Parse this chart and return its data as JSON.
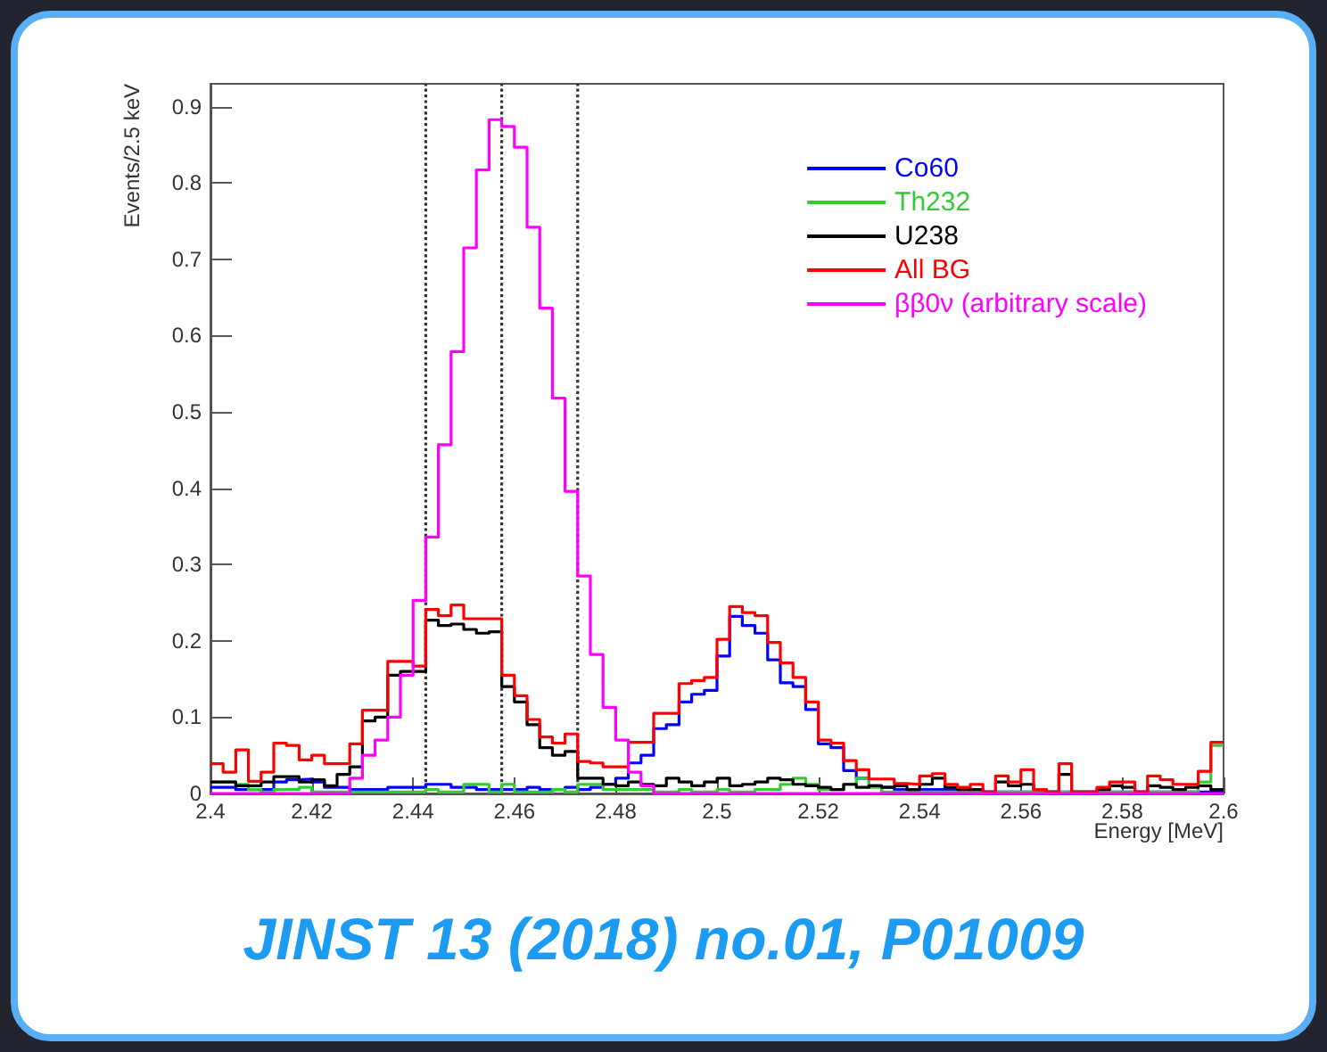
{
  "chart_data": {
    "type": "histogram",
    "xlabel": "Energy [MeV]",
    "ylabel": "Events/2.5 keV",
    "annotations": [
      "JINST 13 (2018) no.01, P01009"
    ],
    "bins": [
      2.4,
      2.4025,
      2.405,
      2.4075,
      2.41,
      2.4125,
      2.415,
      2.4175,
      2.42,
      2.4225,
      2.425,
      2.4275,
      2.43,
      2.4325,
      2.435,
      2.4375,
      2.44,
      2.4425,
      2.445,
      2.4475,
      2.45,
      2.4525,
      2.455,
      2.4575,
      2.46,
      2.4625,
      2.465,
      2.4675,
      2.47,
      2.4725,
      2.475,
      2.4775,
      2.48,
      2.4825,
      2.485,
      2.4875,
      2.49,
      2.4925,
      2.495,
      2.4975,
      2.5,
      2.5025,
      2.505,
      2.5075,
      2.51,
      2.5125,
      2.515,
      2.5175,
      2.52,
      2.5225,
      2.525,
      2.5275,
      2.53,
      2.5325,
      2.535,
      2.5375,
      2.54,
      2.5425,
      2.545,
      2.5475,
      2.55,
      2.5525,
      2.555,
      2.5575,
      2.56,
      2.5625,
      2.565,
      2.5675,
      2.57,
      2.5725,
      2.575,
      2.5775,
      2.58,
      2.5825,
      2.585,
      2.5875,
      2.59,
      2.5925,
      2.595,
      2.5975,
      2.6
    ],
    "series": [
      {
        "name": "Co60",
        "color": "#0000ff",
        "values": [
          0.008,
          0.008,
          0.005,
          0.005,
          0.005,
          0.015,
          0.018,
          0.019,
          0.015,
          0.008,
          0.008,
          0.005,
          0.005,
          0.005,
          0.008,
          0.008,
          0.008,
          0.012,
          0.012,
          0.008,
          0.008,
          0.005,
          0.005,
          0.005,
          0.005,
          0.008,
          0.005,
          0.005,
          0.008,
          0.005,
          0.008,
          0.012,
          0.02,
          0.04,
          0.05,
          0.085,
          0.09,
          0.12,
          0.13,
          0.135,
          0.18,
          0.232,
          0.22,
          0.21,
          0.175,
          0.145,
          0.14,
          0.11,
          0.065,
          0.06,
          0.03,
          0.02,
          0.01,
          0.008,
          0.005,
          0.005,
          0.005,
          0.005,
          0.005,
          0.002,
          0.002,
          0.002,
          0.002,
          0.002,
          0.002,
          0.002,
          0.002,
          0.002,
          0.002,
          0.002,
          0.002,
          0.002,
          0.002,
          0.002,
          0.002,
          0.002,
          0.002,
          0.002,
          0.002,
          0.002
        ]
      },
      {
        "name": "Th232",
        "color": "#33cc33",
        "values": [
          0.015,
          0.015,
          0.012,
          0.005,
          0.002,
          0.005,
          0.005,
          0.008,
          0.002,
          0.002,
          0.002,
          0.002,
          0.002,
          0.002,
          0.002,
          0.002,
          0.002,
          0.005,
          0.002,
          0.002,
          0.012,
          0.012,
          0.002,
          0.012,
          0.002,
          0.002,
          0.002,
          0.005,
          0.002,
          0.012,
          0.012,
          0.005,
          0.005,
          0.005,
          0.005,
          0.002,
          0.002,
          0.005,
          0.002,
          0.002,
          0.005,
          0.002,
          0.002,
          0.005,
          0.005,
          0.012,
          0.02,
          0.012,
          0.005,
          0.005,
          0.012,
          0.02,
          0.008,
          0.002,
          0.002,
          0.002,
          0.002,
          0.002,
          0.002,
          0.002,
          0.002,
          0.002,
          0.002,
          0.002,
          0.002,
          0.002,
          0.002,
          0.002,
          0.002,
          0.002,
          0.002,
          0.002,
          0.002,
          0.002,
          0.002,
          0.002,
          0.002,
          0.002,
          0.015,
          0.063
        ]
      },
      {
        "name": "U238",
        "color": "#000000",
        "values": [
          0.015,
          0.015,
          0.01,
          0.01,
          0.015,
          0.022,
          0.022,
          0.015,
          0.018,
          0.01,
          0.025,
          0.035,
          0.095,
          0.1,
          0.155,
          0.16,
          0.16,
          0.227,
          0.22,
          0.222,
          0.215,
          0.21,
          0.212,
          0.14,
          0.12,
          0.09,
          0.06,
          0.05,
          0.055,
          0.02,
          0.02,
          0.012,
          0.01,
          0.015,
          0.012,
          0.01,
          0.02,
          0.015,
          0.01,
          0.015,
          0.02,
          0.01,
          0.012,
          0.015,
          0.02,
          0.018,
          0.012,
          0.01,
          0.008,
          0.005,
          0.012,
          0.008,
          0.01,
          0.008,
          0.01,
          0.005,
          0.012,
          0.02,
          0.008,
          0.005,
          0.005,
          0.002,
          0.015,
          0.01,
          0.012,
          0.005,
          0.002,
          0.025,
          0.002,
          0.002,
          0.005,
          0.01,
          0.008,
          0.002,
          0.01,
          0.008,
          0.005,
          0.008,
          0.01,
          0.005
        ]
      },
      {
        "name": "All BG",
        "color": "#ff0000",
        "values": [
          0.039,
          0.028,
          0.057,
          0.016,
          0.028,
          0.066,
          0.063,
          0.044,
          0.05,
          0.039,
          0.039,
          0.065,
          0.109,
          0.109,
          0.173,
          0.173,
          0.167,
          0.241,
          0.233,
          0.247,
          0.229,
          0.229,
          0.229,
          0.155,
          0.128,
          0.097,
          0.074,
          0.066,
          0.078,
          0.042,
          0.04,
          0.035,
          0.035,
          0.067,
          0.067,
          0.105,
          0.105,
          0.144,
          0.148,
          0.152,
          0.202,
          0.245,
          0.237,
          0.233,
          0.198,
          0.171,
          0.152,
          0.12,
          0.07,
          0.066,
          0.043,
          0.031,
          0.019,
          0.019,
          0.013,
          0.012,
          0.023,
          0.026,
          0.012,
          0.008,
          0.012,
          0.002,
          0.023,
          0.015,
          0.031,
          0.005,
          0.002,
          0.039,
          0.002,
          0.002,
          0.008,
          0.015,
          0.015,
          0.002,
          0.023,
          0.018,
          0.012,
          0.012,
          0.029,
          0.067
        ]
      },
      {
        "name": "ββ0ν (arbitrary scale)",
        "color": "#ff00ff",
        "values": [
          0,
          0,
          0,
          0,
          0,
          0,
          0,
          0,
          0,
          0,
          0,
          0.02,
          0.05,
          0.07,
          0.1,
          0.155,
          0.253,
          0.336,
          0.457,
          0.579,
          0.715,
          0.817,
          0.883,
          0.874,
          0.847,
          0.742,
          0.636,
          0.518,
          0.396,
          0.285,
          0.182,
          0.113,
          0.07,
          0.028,
          0.01,
          0,
          0,
          0,
          0,
          0,
          0,
          0,
          0,
          0,
          0,
          0,
          0,
          0,
          0,
          0,
          0,
          0,
          0,
          0,
          0,
          0,
          0,
          0,
          0,
          0,
          0,
          0,
          0,
          0,
          0,
          0,
          0,
          0,
          0,
          0,
          0,
          0,
          0,
          0,
          0,
          0,
          0,
          0,
          0,
          0
        ]
      }
    ],
    "xlim": [
      2.4,
      2.6
    ],
    "xticks": [
      2.4,
      2.42,
      2.44,
      2.46,
      2.48,
      2.5,
      2.52,
      2.54,
      2.56,
      2.58,
      2.6
    ],
    "ylim": [
      0,
      0.93
    ],
    "yticks": [
      0,
      0.1,
      0.2,
      0.3,
      0.4,
      0.5,
      0.6,
      0.7,
      0.8,
      0.9
    ],
    "ref_lines": [
      {
        "axis": "x",
        "value": 2.4425,
        "color": "#333333",
        "line_style": "dotted"
      },
      {
        "axis": "x",
        "value": 2.4575,
        "color": "#333333",
        "line_style": "dotted"
      },
      {
        "axis": "x",
        "value": 2.4725,
        "color": "#333333",
        "line_style": "dotted"
      }
    ],
    "grid": false,
    "legend": "top right",
    "line_style": "solid",
    "marker": "none"
  }
}
